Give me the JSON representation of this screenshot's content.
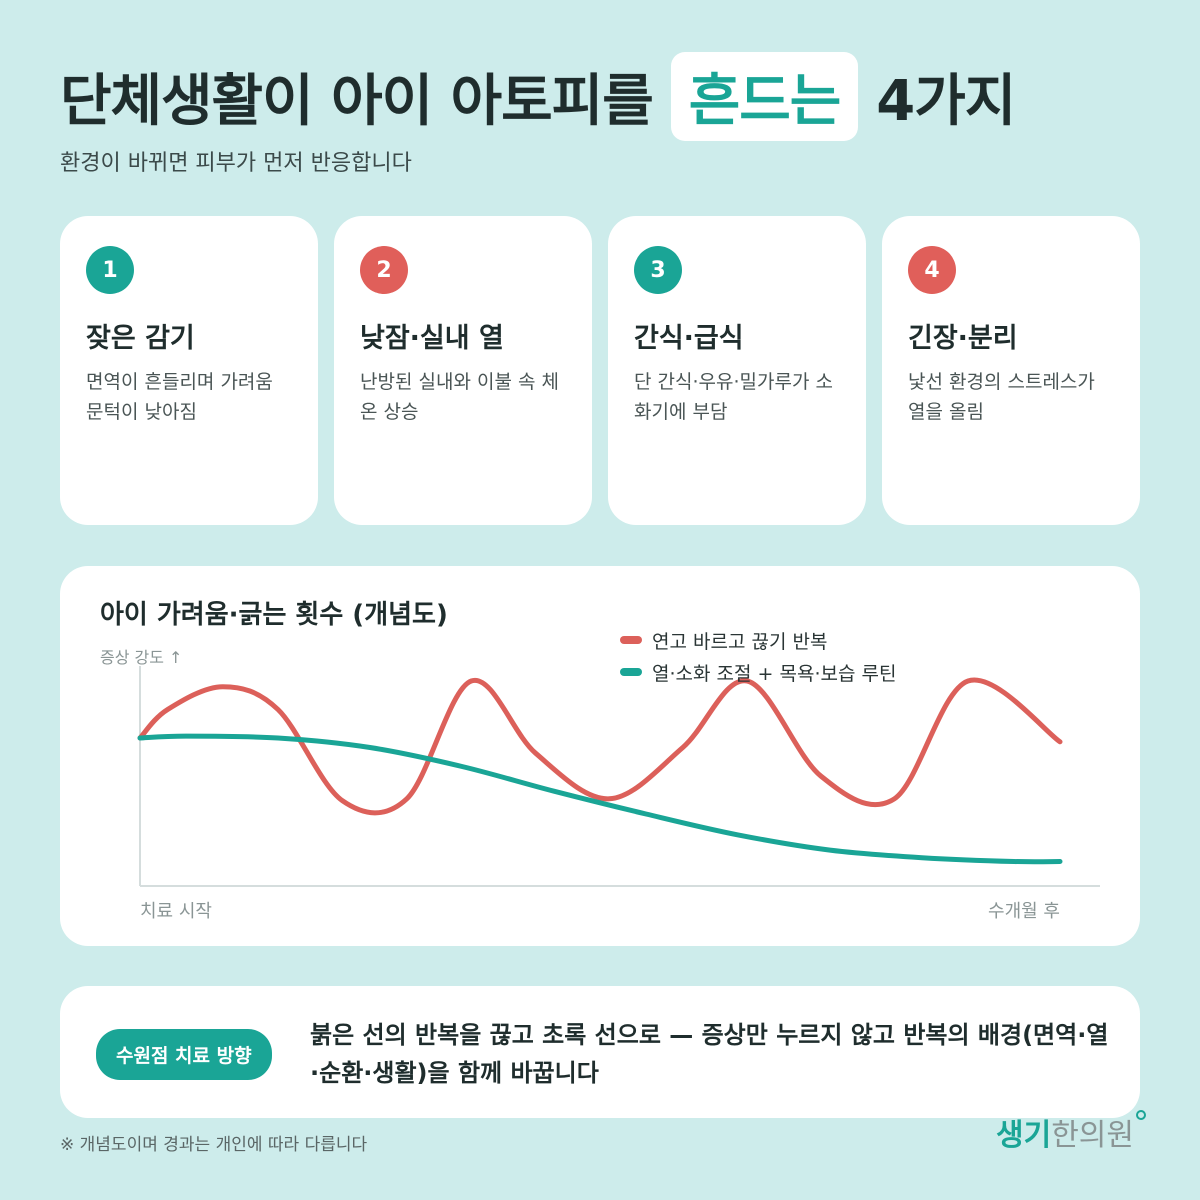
{
  "header": {
    "title_part1": "단체생활이 아이 아토피를",
    "title_highlight": "흔드는",
    "title_part2": "4가지",
    "subtitle": "환경이 바뀌면 피부가 먼저 반응합니다"
  },
  "cards": [
    {
      "number": "1",
      "title": "잦은 감기",
      "desc": "면역이 흔들리며 가려움 문턱이 낮아짐",
      "color": "#1aa596"
    },
    {
      "number": "2",
      "title": "낮잠·실내 열",
      "desc": "난방된 실내와 이불 속 체온 상승",
      "color": "#e05f5a"
    },
    {
      "number": "3",
      "title": "간식·급식",
      "desc": "단 간식·우유·밀가루가 소화기에 부담",
      "color": "#1aa596"
    },
    {
      "number": "4",
      "title": "긴장·분리",
      "desc": "낯선 환경의 스트레스가 열을 올림",
      "color": "#e05f5a"
    }
  ],
  "chart": {
    "title": "아이 가려움·긁는 횟수 (개념도)",
    "y_label": "증상 강도 ↑",
    "x_start": "치료 시작",
    "x_end": "수개월 후"
  },
  "chart_data": {
    "type": "line",
    "title": "아이 가려움·긁는 횟수 (개념도)",
    "ylabel": "증상 강도 ↑",
    "x_tick_labels": [
      "치료 시작",
      "수개월 후"
    ],
    "legend_position": "top-right",
    "grid": false,
    "series": [
      {
        "name": "연고 바르고 끊기 반복",
        "color": "#dc605a",
        "x": [
          0,
          0.03,
          0.09,
          0.15,
          0.22,
          0.29,
          0.36,
          0.43,
          0.51,
          0.59,
          0.66,
          0.74,
          0.82,
          0.9,
          1.0
        ],
        "y": [
          0.7,
          0.85,
          0.97,
          0.85,
          0.37,
          0.38,
          1.0,
          0.62,
          0.38,
          0.65,
          1.0,
          0.5,
          0.38,
          1.0,
          0.68
        ]
      },
      {
        "name": "열·소화 조절 + 목욕·보습 루틴",
        "color": "#1aa596",
        "x": [
          0,
          0.05,
          0.15,
          0.25,
          0.35,
          0.45,
          0.55,
          0.65,
          0.75,
          0.85,
          0.95,
          1.0
        ],
        "y": [
          0.7,
          0.71,
          0.7,
          0.65,
          0.55,
          0.42,
          0.3,
          0.19,
          0.11,
          0.07,
          0.05,
          0.05
        ]
      }
    ]
  },
  "direction": {
    "pill_label": "수원점 치료 방향",
    "text": "붉은 선의 반복을 끊고 초록 선으로 — 증상만 누르지 않고 반복의 배경(면역·열·순환·생활)을 함께 바꿉니다"
  },
  "footer": {
    "footnote": "※ 개념도이며 경과는 개인에 따라 다릅니다",
    "logo_part1": "생기",
    "logo_part2": "한의원"
  }
}
